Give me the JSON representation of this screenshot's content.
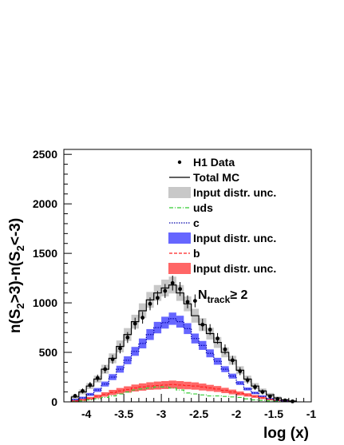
{
  "chart_data": {
    "type": "histogram",
    "title": "",
    "xlabel": "log (x)",
    "ylabel": "n(S",
    "ylabel_sub1": "2",
    "ylabel_mid": ">3)-n(S",
    "ylabel_sub2": "2",
    "ylabel_end": "<-3)",
    "xlim": [
      -4.3,
      -1.0
    ],
    "ylim": [
      0,
      2550
    ],
    "x_ticks": [
      -4,
      -3.5,
      -3,
      -2.5,
      -2,
      -1.5,
      -1
    ],
    "y_ticks": [
      0,
      500,
      1000,
      1500,
      2000,
      2500
    ],
    "legend_position": "top-center",
    "annotation": {
      "main": "N",
      "sub": "track",
      "rest": "≥ 2"
    },
    "bin_edges": [
      -4.2,
      -4.1,
      -4.0,
      -3.9,
      -3.8,
      -3.7,
      -3.6,
      -3.5,
      -3.4,
      -3.3,
      -3.2,
      -3.1,
      -3.0,
      -2.9,
      -2.8,
      -2.7,
      -2.6,
      -2.5,
      -2.4,
      -2.3,
      -2.2,
      -2.1,
      -2.0,
      -1.9,
      -1.8,
      -1.7,
      -1.6,
      -1.5,
      -1.4,
      -1.3,
      -1.2,
      -1.1
    ],
    "colors": {
      "total": "#000000",
      "total_band": "#c8c8c8",
      "uds": "#33cc33",
      "c": "#0000aa",
      "c_band": "#6666ff",
      "b": "#ff2222",
      "b_band": "#ff6666"
    },
    "legend": [
      {
        "label": "H1 Data",
        "kind": "marker"
      },
      {
        "label": "Total MC",
        "kind": "line-black"
      },
      {
        "label": "Input distr. unc.",
        "kind": "box-gray"
      },
      {
        "label": "uds",
        "kind": "line-green"
      },
      {
        "label": "c",
        "kind": "line-blue"
      },
      {
        "label": "Input distr. unc.",
        "kind": "box-blue"
      },
      {
        "label": "b",
        "kind": "line-red"
      },
      {
        "label": "Input distr. unc.",
        "kind": "box-red"
      }
    ],
    "series": [
      {
        "name": "H1 Data",
        "style": "points",
        "x": [
          -4.15,
          -4.05,
          -3.95,
          -3.85,
          -3.75,
          -3.65,
          -3.55,
          -3.45,
          -3.35,
          -3.25,
          -3.15,
          -3.05,
          -2.95,
          -2.85,
          -2.75,
          -2.65,
          -2.55,
          -2.45,
          -2.35,
          -2.25,
          -2.15,
          -2.05,
          -1.95,
          -1.85,
          -1.75,
          -1.65,
          -1.55,
          -1.45,
          -1.35,
          -1.25
        ],
        "y": [
          60,
          110,
          170,
          240,
          330,
          430,
          540,
          650,
          790,
          850,
          990,
          1050,
          1120,
          1200,
          1140,
          1010,
          1020,
          780,
          730,
          640,
          530,
          420,
          310,
          220,
          150,
          100,
          55,
          30,
          15,
          5
        ],
        "err": [
          20,
          25,
          30,
          35,
          40,
          45,
          50,
          55,
          60,
          60,
          65,
          70,
          70,
          75,
          70,
          65,
          65,
          60,
          55,
          55,
          50,
          45,
          40,
          35,
          30,
          25,
          20,
          15,
          10,
          5
        ]
      },
      {
        "name": "Total MC",
        "style": "step",
        "values": [
          50,
          100,
          160,
          230,
          330,
          440,
          560,
          680,
          810,
          920,
          1030,
          1100,
          1150,
          1180,
          1100,
          990,
          870,
          780,
          690,
          600,
          500,
          420,
          320,
          230,
          160,
          110,
          70,
          40,
          20,
          8
        ],
        "band": [
          20,
          25,
          30,
          35,
          45,
          50,
          60,
          65,
          70,
          75,
          80,
          80,
          85,
          85,
          80,
          75,
          70,
          65,
          60,
          55,
          50,
          45,
          40,
          35,
          30,
          25,
          20,
          15,
          10,
          5
        ]
      },
      {
        "name": "c",
        "style": "step-dotted",
        "values": [
          20,
          40,
          75,
          120,
          180,
          250,
          330,
          420,
          510,
          590,
          680,
          750,
          800,
          840,
          810,
          740,
          640,
          570,
          490,
          410,
          330,
          260,
          190,
          130,
          90,
          55,
          30,
          15,
          8,
          3
        ],
        "band": [
          10,
          12,
          15,
          20,
          25,
          30,
          35,
          40,
          45,
          50,
          55,
          58,
          60,
          62,
          60,
          55,
          50,
          45,
          40,
          35,
          30,
          25,
          20,
          15,
          12,
          10,
          8,
          5,
          3,
          2
        ]
      },
      {
        "name": "b",
        "style": "step-dashed",
        "values": [
          10,
          20,
          35,
          55,
          75,
          95,
          110,
          125,
          140,
          150,
          160,
          165,
          170,
          175,
          170,
          165,
          160,
          150,
          140,
          130,
          115,
          100,
          85,
          70,
          55,
          40,
          25,
          15,
          8,
          3
        ],
        "band": [
          8,
          10,
          14,
          18,
          22,
          26,
          30,
          32,
          35,
          37,
          38,
          40,
          40,
          40,
          40,
          38,
          37,
          35,
          32,
          30,
          27,
          24,
          20,
          17,
          14,
          11,
          8,
          6,
          4,
          2
        ]
      },
      {
        "name": "uds",
        "style": "step-dashdot",
        "values": [
          5,
          10,
          20,
          30,
          45,
          60,
          80,
          100,
          120,
          130,
          140,
          150,
          150,
          140,
          120,
          90,
          80,
          70,
          60,
          60,
          55,
          50,
          45,
          30,
          20,
          15,
          10,
          8,
          5,
          2
        ]
      }
    ]
  }
}
